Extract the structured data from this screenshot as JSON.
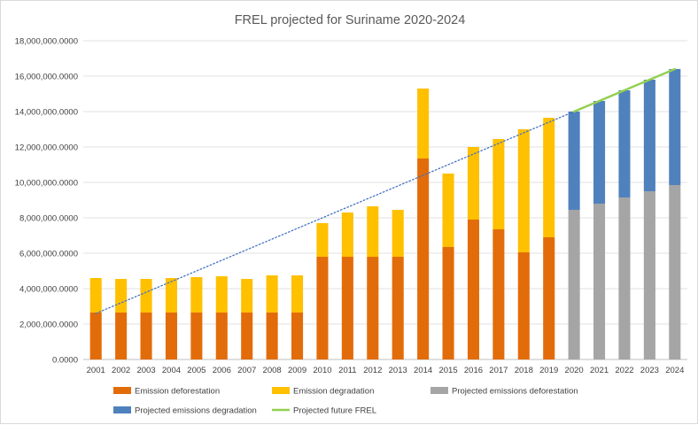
{
  "chart_data": {
    "type": "bar",
    "title": "FREL projected for Suriname 2020-2024",
    "xlabel": "",
    "ylabel": "",
    "ylim": [
      0,
      18000000
    ],
    "ytick_step": 2000000,
    "ytick_labels": [
      "0.0000",
      "2,000,000.0000",
      "4,000,000.0000",
      "6,000,000.0000",
      "8,000,000.0000",
      "10,000,000.0000",
      "12,000,000.0000",
      "14,000,000.0000",
      "16,000,000.0000",
      "18,000,000.0000"
    ],
    "grid": true,
    "legend_position": "bottom",
    "categories": [
      "2001",
      "2002",
      "2003",
      "2004",
      "2005",
      "2006",
      "2007",
      "2008",
      "2009",
      "2010",
      "2011",
      "2012",
      "2013",
      "2014",
      "2015",
      "2016",
      "2017",
      "2018",
      "2019",
      "2020",
      "2021",
      "2022",
      "2023",
      "2024"
    ],
    "series": [
      {
        "name": "Emission deforestation",
        "color": "#e36c0a",
        "stack": true,
        "values": [
          2650000,
          2650000,
          2650000,
          2650000,
          2650000,
          2650000,
          2650000,
          2650000,
          2650000,
          5800000,
          5800000,
          5800000,
          5800000,
          11350000,
          6350000,
          7900000,
          7350000,
          6050000,
          6900000,
          null,
          null,
          null,
          null,
          null
        ]
      },
      {
        "name": "Emission degradation",
        "color": "#ffc000",
        "stack": true,
        "values": [
          1950000,
          1900000,
          1900000,
          1950000,
          2000000,
          2050000,
          1900000,
          2100000,
          2100000,
          1900000,
          2500000,
          2850000,
          2650000,
          3950000,
          4150000,
          4100000,
          5100000,
          6950000,
          6750000,
          null,
          null,
          null,
          null,
          null
        ]
      },
      {
        "name": "Projected emissions deforestation",
        "color": "#a5a5a5",
        "stack": true,
        "values": [
          null,
          null,
          null,
          null,
          null,
          null,
          null,
          null,
          null,
          null,
          null,
          null,
          null,
          null,
          null,
          null,
          null,
          null,
          null,
          8450000,
          8800000,
          9150000,
          9500000,
          9850000
        ]
      },
      {
        "name": "Projected emissions degradation",
        "color": "#4f81bd",
        "stack": true,
        "values": [
          null,
          null,
          null,
          null,
          null,
          null,
          null,
          null,
          null,
          null,
          null,
          null,
          null,
          null,
          null,
          null,
          null,
          null,
          null,
          5550000,
          5800000,
          6050000,
          6300000,
          6550000
        ]
      },
      {
        "name": "Projected future FREL",
        "color": "#92d050",
        "kind": "line",
        "x": [
          "2020",
          "2024"
        ],
        "values": [
          14000000,
          16400000
        ]
      }
    ],
    "trendline": {
      "style": "dotted",
      "color": "#4472c4",
      "x": [
        "2001",
        "2024"
      ],
      "values": [
        2600000,
        16400000
      ]
    }
  }
}
